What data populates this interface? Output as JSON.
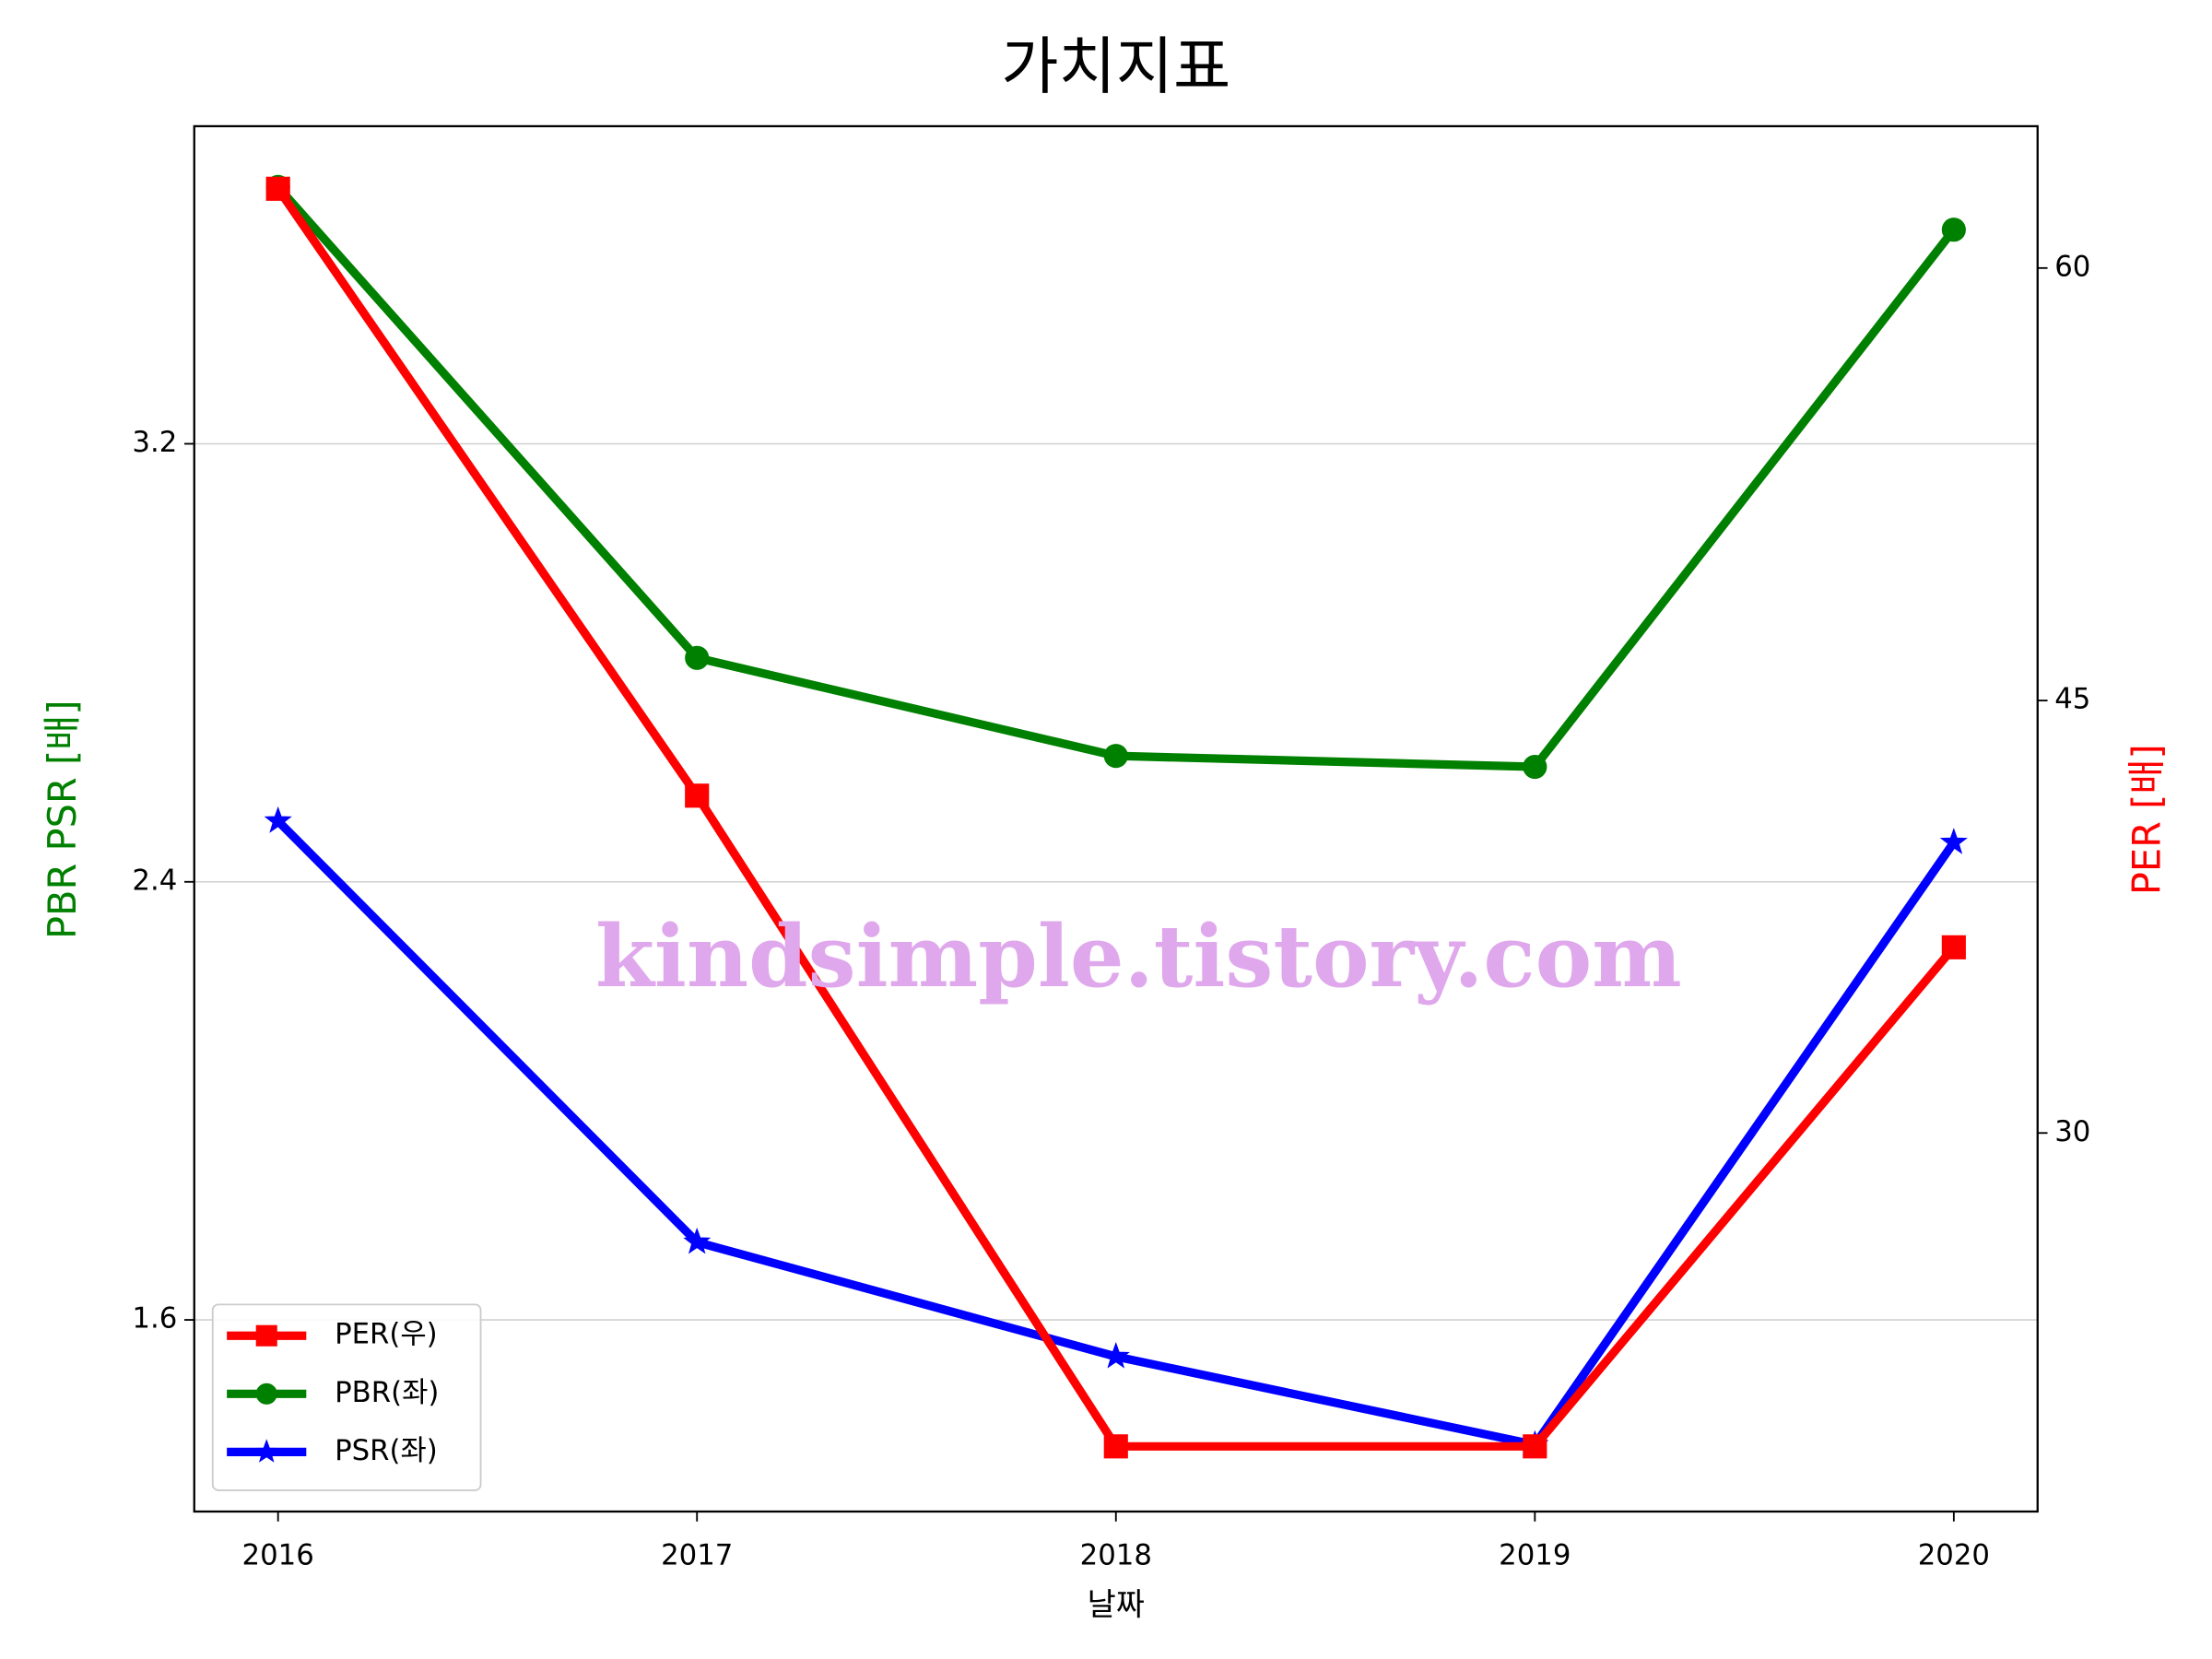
{
  "chart_data": {
    "type": "line",
    "title": "가치지표",
    "x_label": "날짜",
    "y_label": "PBR PSR [배]",
    "y2_label": "PER [배]",
    "y_label_color": "#008000",
    "y2_label_color": "#ff0000",
    "annotation": "kindsimple.tistory.com",
    "annotation_color": "#e0a8ec",
    "x": [
      2016,
      2017,
      2018,
      2019,
      2020
    ],
    "xlim": [
      2015.8,
      2020.2
    ],
    "xticks": [
      2016,
      2017,
      2018,
      2019,
      2020
    ],
    "ylim": [
      1.25,
      3.78
    ],
    "yticks": [
      1.6,
      2.4,
      3.2
    ],
    "y2lim": [
      16.87,
      64.92
    ],
    "y2ticks": [
      30,
      45,
      60
    ],
    "grid": true,
    "legend": "lower left",
    "series": [
      {
        "name": "PER(우)",
        "color": "#ff0000",
        "marker": "square",
        "axis": "y2",
        "values": [
          62.75,
          41.7,
          19.13,
          19.13,
          36.44
        ]
      },
      {
        "name": "PBR(좌)",
        "color": "#008000",
        "marker": "circle",
        "values": [
          3.669,
          2.809,
          2.63,
          2.61,
          3.591
        ]
      },
      {
        "name": "PSR(좌)",
        "color": "#0000ff",
        "marker": "star",
        "values": [
          2.511,
          1.742,
          1.533,
          1.372,
          2.472
        ]
      }
    ]
  }
}
